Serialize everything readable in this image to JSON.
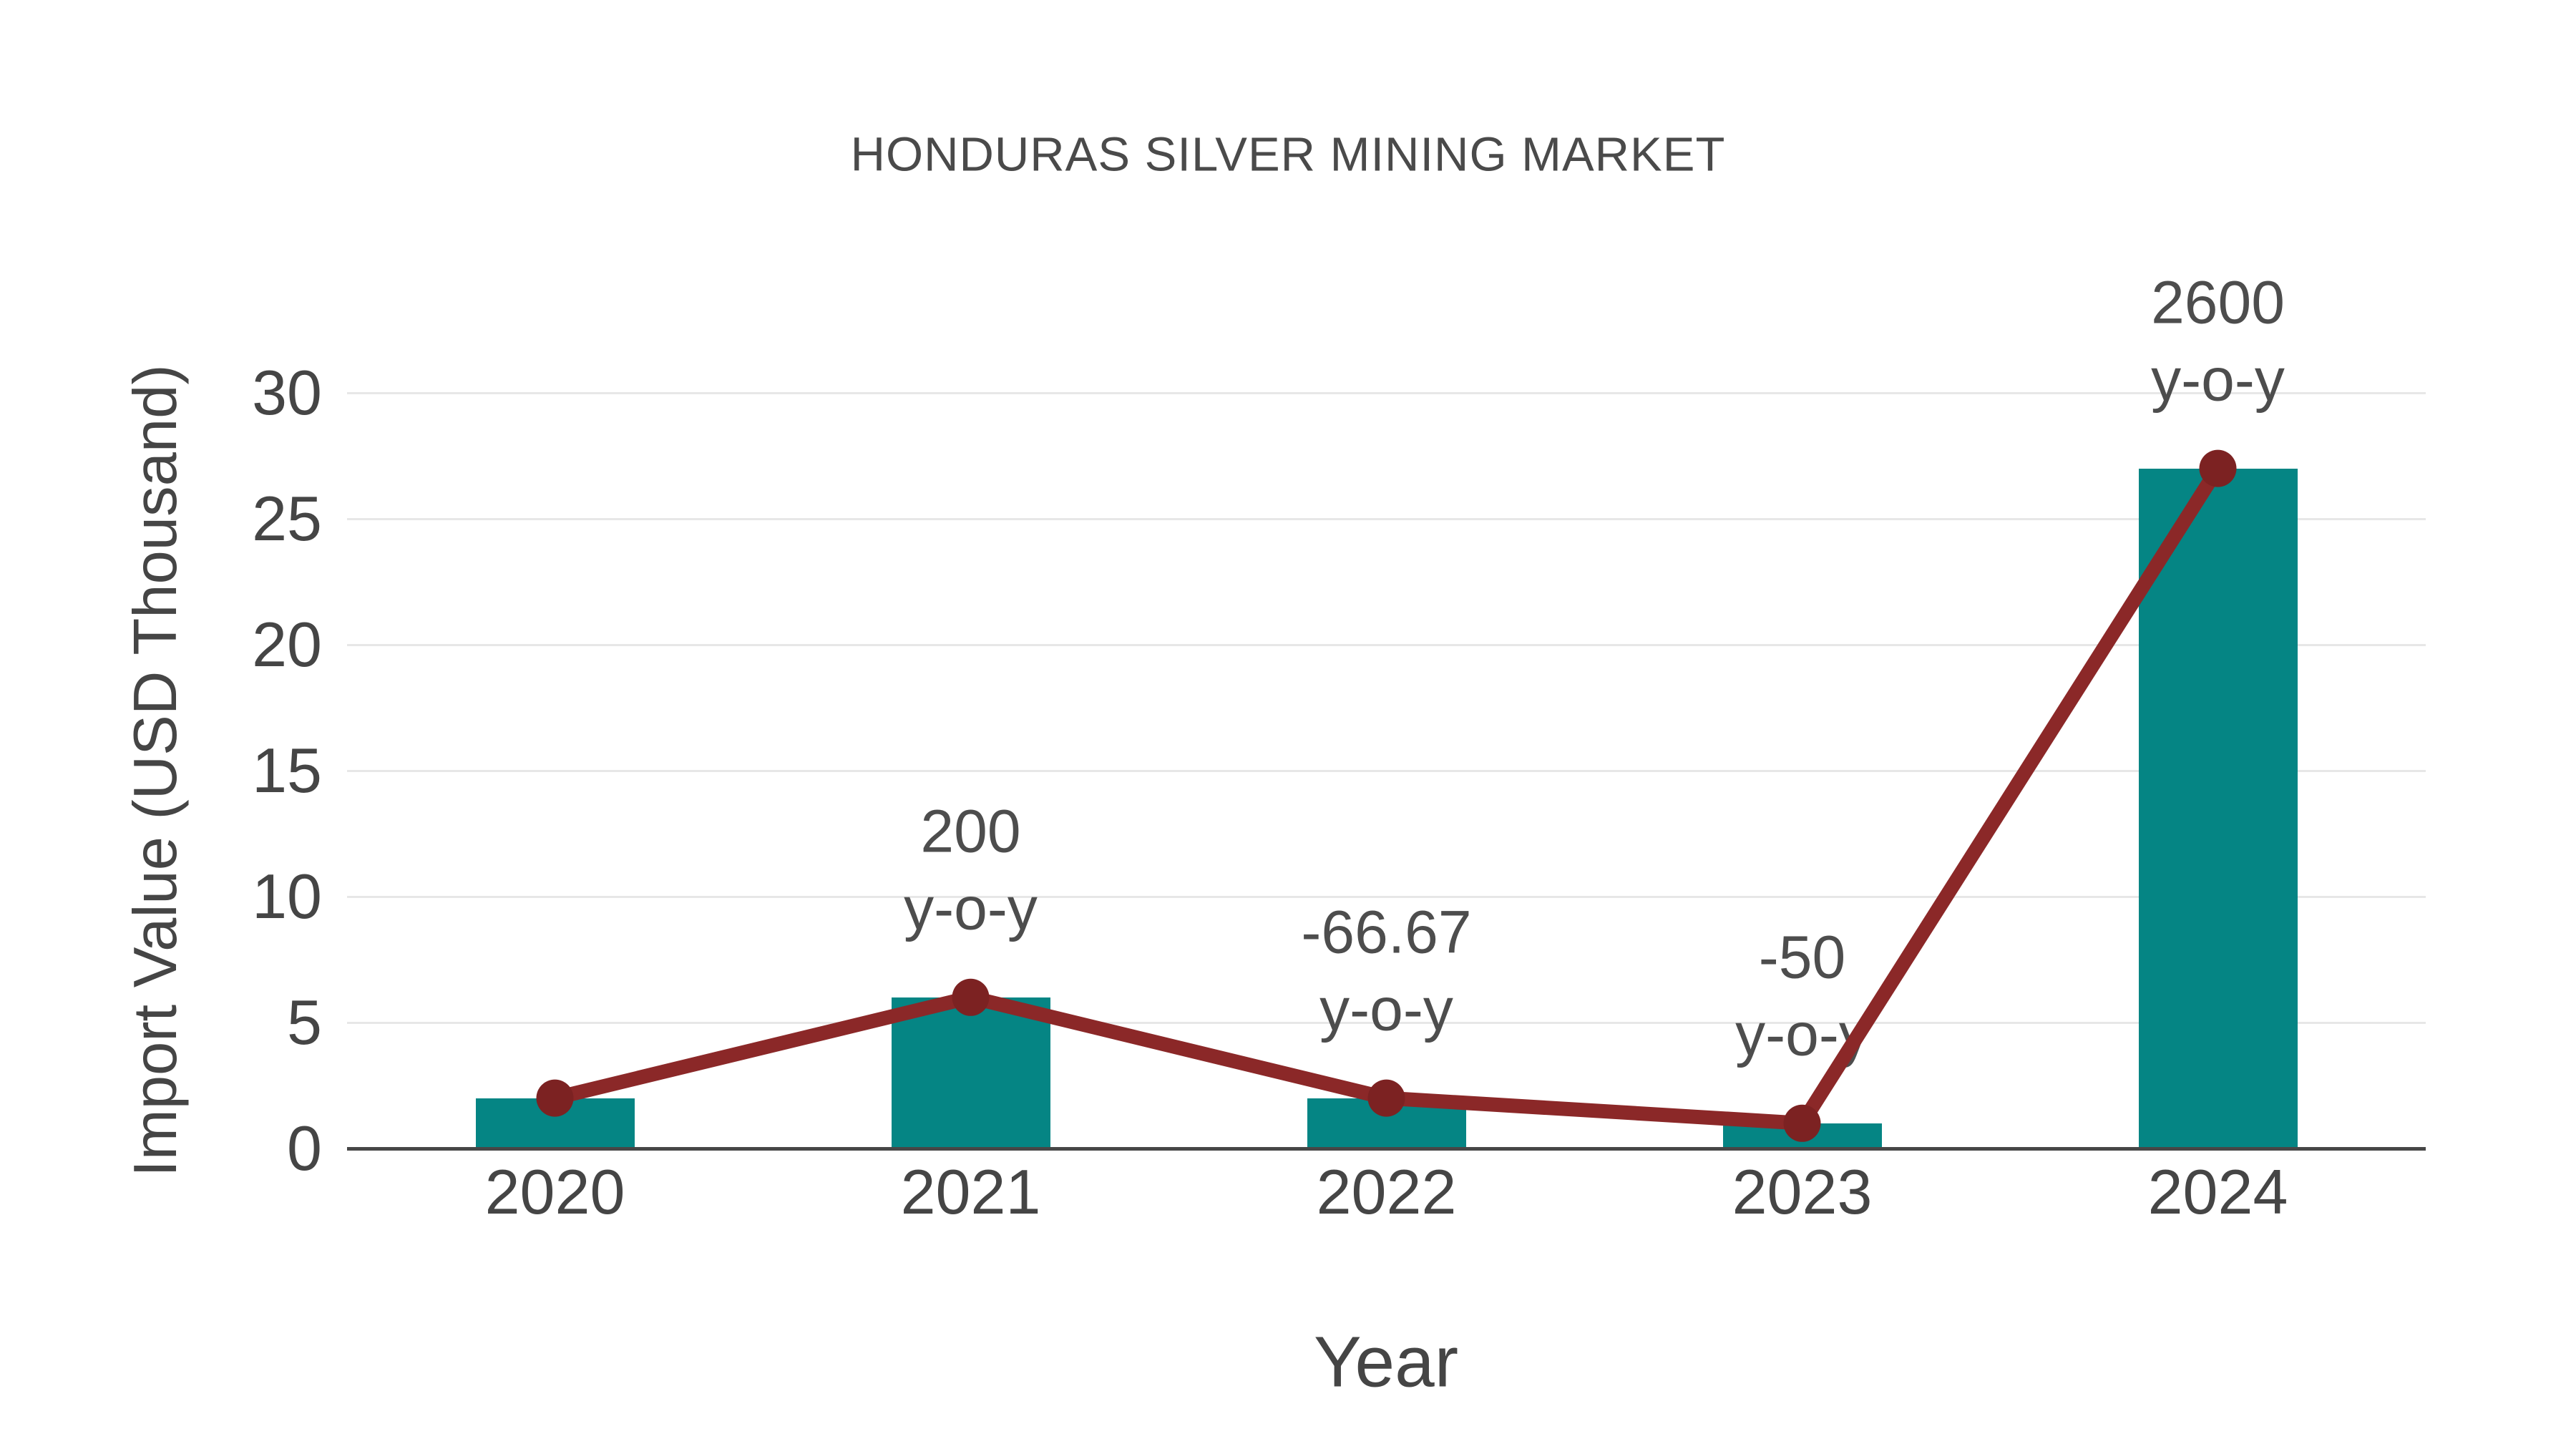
{
  "chart_data": {
    "type": "bar+line",
    "title": "HONDURAS SILVER MINING MARKET",
    "xlabel": "Year",
    "ylabel": "Import Value (USD Thousand)",
    "categories": [
      "2020",
      "2021",
      "2022",
      "2023",
      "2024"
    ],
    "series": [
      {
        "name": "import-value-bars",
        "type": "bar",
        "values": [
          2,
          6,
          2,
          1,
          27
        ],
        "color": "#058584"
      },
      {
        "name": "import-value-line",
        "type": "line",
        "values": [
          2,
          6,
          2,
          1,
          27
        ],
        "color": "#8b2828",
        "marker_color": "#7c2222"
      }
    ],
    "annotations": [
      {
        "category": "2021",
        "value": "200",
        "suffix": "y-o-y"
      },
      {
        "category": "2022",
        "value": "-66.67",
        "suffix": "y-o-y"
      },
      {
        "category": "2023",
        "value": "-50",
        "suffix": "y-o-y"
      },
      {
        "category": "2024",
        "value": "2600",
        "suffix": "y-o-y"
      }
    ],
    "yticks": [
      0,
      5,
      10,
      15,
      20,
      25,
      30
    ],
    "ylim": [
      0,
      30
    ],
    "grid": true,
    "legend": false,
    "colors": {
      "bar": "#058584",
      "line": "#8b2828",
      "marker": "#7c2222",
      "grid": "#e7e7e7",
      "axis_line": "#474747",
      "text": "#454545"
    }
  }
}
